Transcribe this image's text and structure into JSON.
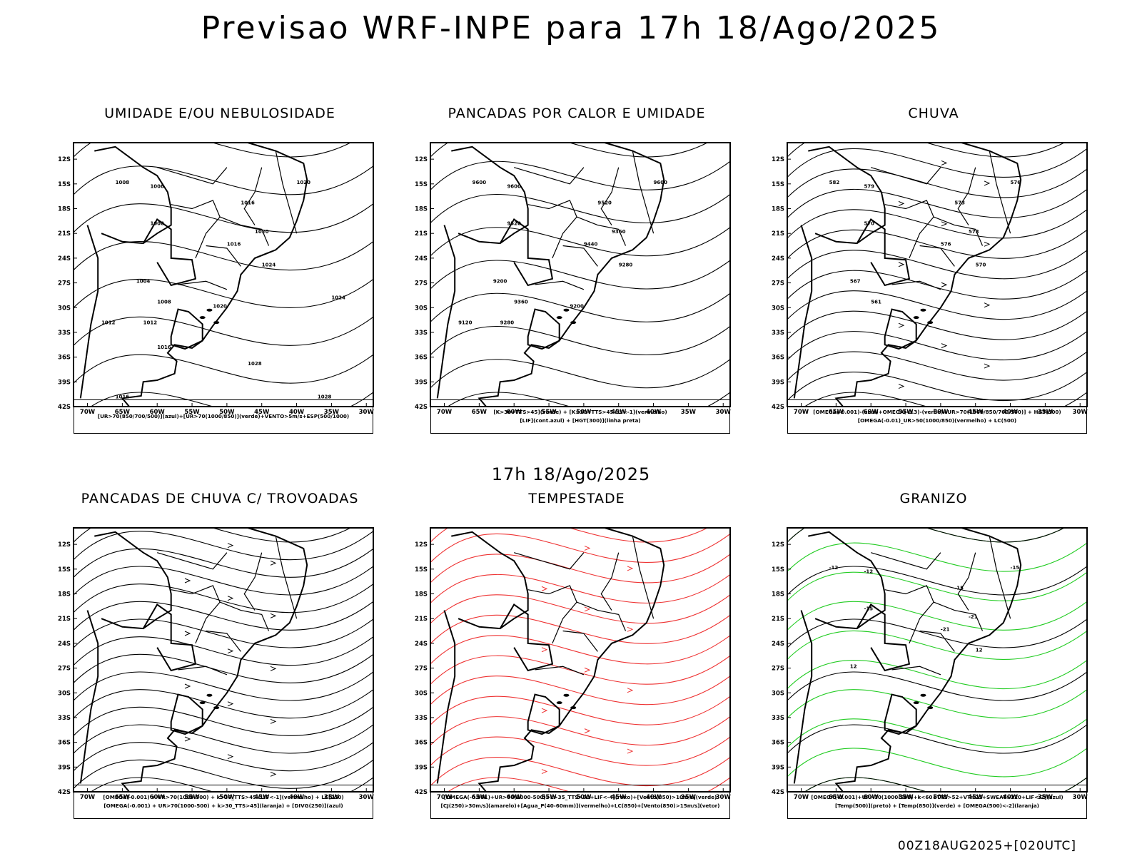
{
  "title": "Previsao WRF-INPE  para 17h 18/Ago/2025",
  "mid_time": "17h 18/Ago/2025",
  "footer": "00Z18AUG2025+[020UTC]",
  "axes": {
    "lat_labels": [
      "12S",
      "15S",
      "18S",
      "21S",
      "24S",
      "27S",
      "30S",
      "33S",
      "36S",
      "39S",
      "42S"
    ],
    "lon_labels": [
      "70W",
      "65W",
      "60W",
      "55W",
      "50W",
      "45W",
      "40W",
      "35W",
      "30W"
    ]
  },
  "colors": {
    "green": "#22cc22",
    "red": "#ee3333",
    "blue": "#2244ee",
    "lavender": "#aab0ee",
    "dark_teal": "#1d4d4a",
    "yellow": "#e4dc30",
    "orange": "#e08030"
  },
  "panels": [
    {
      "id": "umidade",
      "title": "UMIDADE E/OU NEBULOSIDADE",
      "legend": [
        "[UR>70(850/700/500)](azul)+[UR>70(1000/850)](verde)+VENTO>5m/s+ESP(500/1000)"
      ],
      "contour_labels": [
        "1008",
        "1008",
        "1020",
        "1016",
        "1008",
        "1016",
        "1020",
        "1024",
        "1004",
        "1008",
        "1012",
        "1020",
        "1012",
        "1016",
        "1024",
        "1028",
        "1028",
        "1016"
      ]
    },
    {
      "id": "pancadas-calor",
      "title": "PANCADAS POR CALOR E UMIDADE",
      "legend": [
        "[K>30+TTS>45](verde) + [K>30+TTS>45+LI<-1](vermelho)",
        "[LIF](cont.azul) + [HGT(300)](linha preta)"
      ],
      "contour_labels": [
        "9600",
        "9600",
        "9600",
        "9520",
        "9520",
        "9440",
        "9360",
        "9280",
        "9200",
        "9360",
        "9280",
        "9200",
        "9120"
      ]
    },
    {
      "id": "chuva",
      "title": "CHUVA",
      "legend": [
        "[OMEGA(-0.001)-(azul)+OMEGA(-0.3)-(verde)+UR>70(1000/850/700/500)] + HGT(500)",
        "[OMEGA(-0.01)_UR>50(1000/850)(vermelho) + LC(500)"
      ],
      "contour_labels": [
        "582",
        "579",
        "576",
        "573",
        "570",
        "576",
        "573",
        "570",
        "567",
        "561"
      ]
    },
    {
      "id": "pancadas-trovoadas",
      "title": "PANCADAS DE CHUVA C/ TROVOADAS",
      "legend": [
        "[OMEGA(-0.001) + UR>70(1000-500) + k>30_TTS>45+LIF<-1](vermelho) + LC(250)",
        "[OMEGA(-0.001) + UR>70(1000-500) + k>30_TTS>45](laranja) + [DIVG(250)](azul)"
      ],
      "contour_labels": []
    },
    {
      "id": "tempestade",
      "title": "TEMPESTADE",
      "legend": [
        "[OMEGA(-0.001)+UR>70(1000-500)+k>35_TTS>50+LIF<-4](roxo)+[Vento(850)>10m/s](verde)",
        "[CJ(250)>30m/s](amarelo)+[Agua_P(40-60mm)](vermelho)+LC(850)+[Vento(850)>15m/s](vetor)"
      ],
      "contour_labels": []
    },
    {
      "id": "granizo",
      "title": "GRANIZO",
      "legend": [
        "[OMEGA(-0.001)+UR>70(1000-500)+k<60+TTS>52+VT>25+SWEAT>220+LIF<-2](azul)",
        "[Temp(500)](preto) + [Temp(850)](verde) + [OMEGA(500)<-2](laranja)"
      ],
      "contour_labels": [
        "-12",
        "-12",
        "-15",
        "-15",
        "-15",
        "-21",
        "-21",
        "12",
        "12"
      ]
    }
  ]
}
